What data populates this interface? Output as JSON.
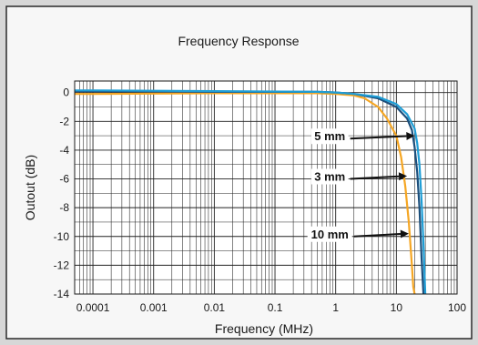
{
  "chart_data": {
    "type": "line",
    "title": "Frequency Response",
    "xlabel": "Frequency (MHz)",
    "ylabel": "Outout (dB)",
    "xscale": "log",
    "xlim": [
      5e-05,
      100
    ],
    "ylim": [
      -14,
      0.8
    ],
    "grid": true,
    "x_ticks": [
      {
        "value": 0.0001,
        "label": "0.0001"
      },
      {
        "value": 0.001,
        "label": "0.001"
      },
      {
        "value": 0.01,
        "label": "0.01"
      },
      {
        "value": 0.1,
        "label": "0.1"
      },
      {
        "value": 1,
        "label": "1"
      },
      {
        "value": 10,
        "label": "10"
      },
      {
        "value": 100,
        "label": "100"
      }
    ],
    "y_ticks": [
      {
        "value": 0,
        "label": "0"
      },
      {
        "value": -2,
        "label": "-2"
      },
      {
        "value": -4,
        "label": "-4"
      },
      {
        "value": -6,
        "label": "-6"
      },
      {
        "value": -8,
        "label": "-8"
      },
      {
        "value": -10,
        "label": "-10"
      },
      {
        "value": -12,
        "label": "-12"
      },
      {
        "value": -14,
        "label": "-14"
      }
    ],
    "series": [
      {
        "name": "10 mm",
        "color": "#f5a623",
        "x": [
          5e-05,
          0.0001,
          0.01,
          0.5,
          1,
          2,
          3,
          5,
          7,
          10,
          12,
          14,
          16,
          18,
          19,
          20
        ],
        "y": [
          -0.1,
          -0.1,
          -0.05,
          -0.05,
          -0.1,
          -0.2,
          -0.4,
          -1.0,
          -1.8,
          -3.0,
          -4.5,
          -6.5,
          -9.0,
          -12.0,
          -13.5,
          -14
        ]
      },
      {
        "name": "5 mm",
        "color": "#1c4f7c",
        "x": [
          5e-05,
          0.0001,
          0.01,
          0.5,
          1,
          2,
          5,
          10,
          15,
          18,
          20,
          22,
          24,
          26,
          28
        ],
        "y": [
          0.1,
          0.1,
          0.05,
          0.05,
          0.0,
          -0.1,
          -0.4,
          -1.0,
          -1.8,
          -2.6,
          -3.8,
          -5.5,
          -8.0,
          -11.5,
          -14
        ]
      },
      {
        "name": "3 mm",
        "color": "#1f9ed6",
        "x": [
          5e-05,
          0.0001,
          0.01,
          0.5,
          1,
          2,
          5,
          10,
          15,
          20,
          22,
          24,
          26,
          28,
          30
        ],
        "y": [
          0.15,
          0.15,
          0.1,
          0.05,
          0.0,
          -0.1,
          -0.3,
          -0.8,
          -1.5,
          -2.5,
          -3.5,
          -5.0,
          -7.5,
          -10.5,
          -14
        ]
      }
    ],
    "annotations": [
      {
        "text": "5 mm",
        "label_at": [
          0.8,
          -3.2
        ],
        "arrow_to": [
          20,
          -3.0
        ]
      },
      {
        "text": "3 mm",
        "label_at": [
          0.8,
          -6.0
        ],
        "arrow_to": [
          15,
          -5.8
        ]
      },
      {
        "text": "10 mm",
        "label_at": [
          0.8,
          -10.0
        ],
        "arrow_to": [
          16,
          -9.8
        ]
      }
    ]
  }
}
